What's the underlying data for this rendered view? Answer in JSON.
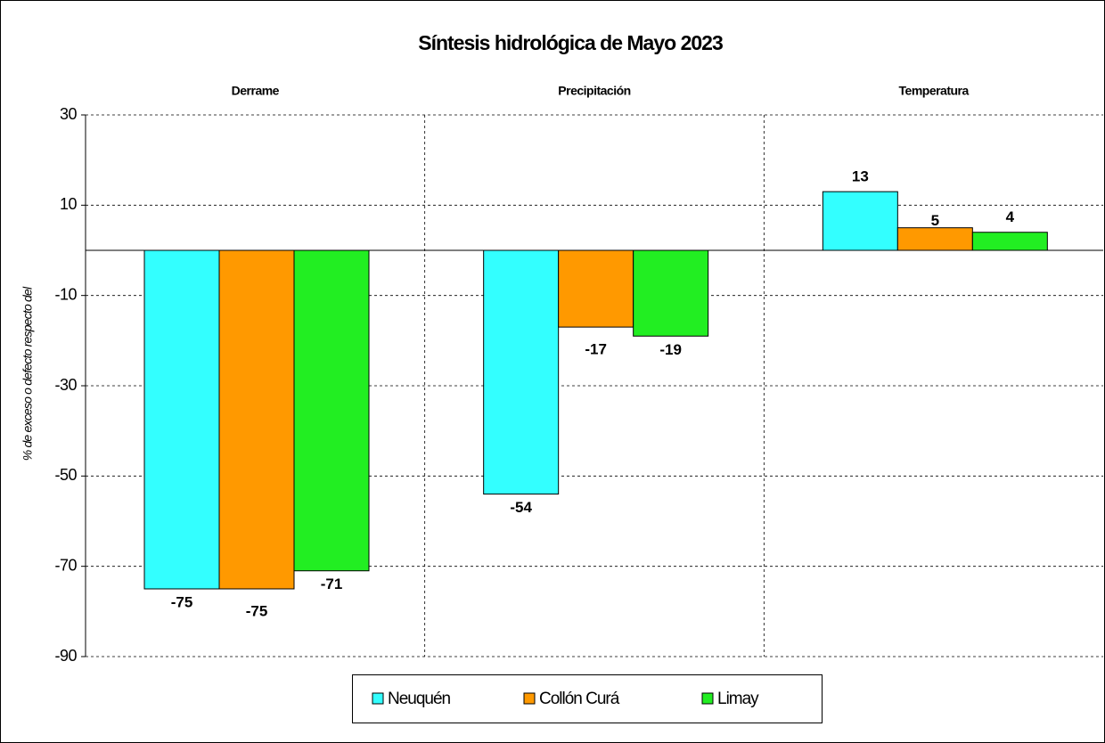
{
  "chart_data": {
    "type": "bar",
    "title": "Síntesis hidrológica de Mayo 2023",
    "y_label": "% de exceso o defecto respecto del",
    "categories": [
      "Derrame",
      "Precipitación",
      "Temperatura"
    ],
    "series": [
      {
        "name": "Neuquén",
        "color": "#33ffff",
        "value_label_color": "#000000",
        "values": [
          -75,
          -54,
          13
        ]
      },
      {
        "name": "Collón Curá",
        "color": "#ff9900",
        "value_label_color": "#1f4d1f",
        "values": [
          -75,
          -17,
          5
        ]
      },
      {
        "name": "Limay",
        "color": "#22ee22",
        "value_label_color": "#000000",
        "values": [
          -71,
          -19,
          4
        ]
      }
    ],
    "ylim": [
      -90,
      30
    ],
    "yticks": [
      30,
      10,
      -10,
      -30,
      -50,
      -70,
      -90
    ],
    "grid": true
  }
}
